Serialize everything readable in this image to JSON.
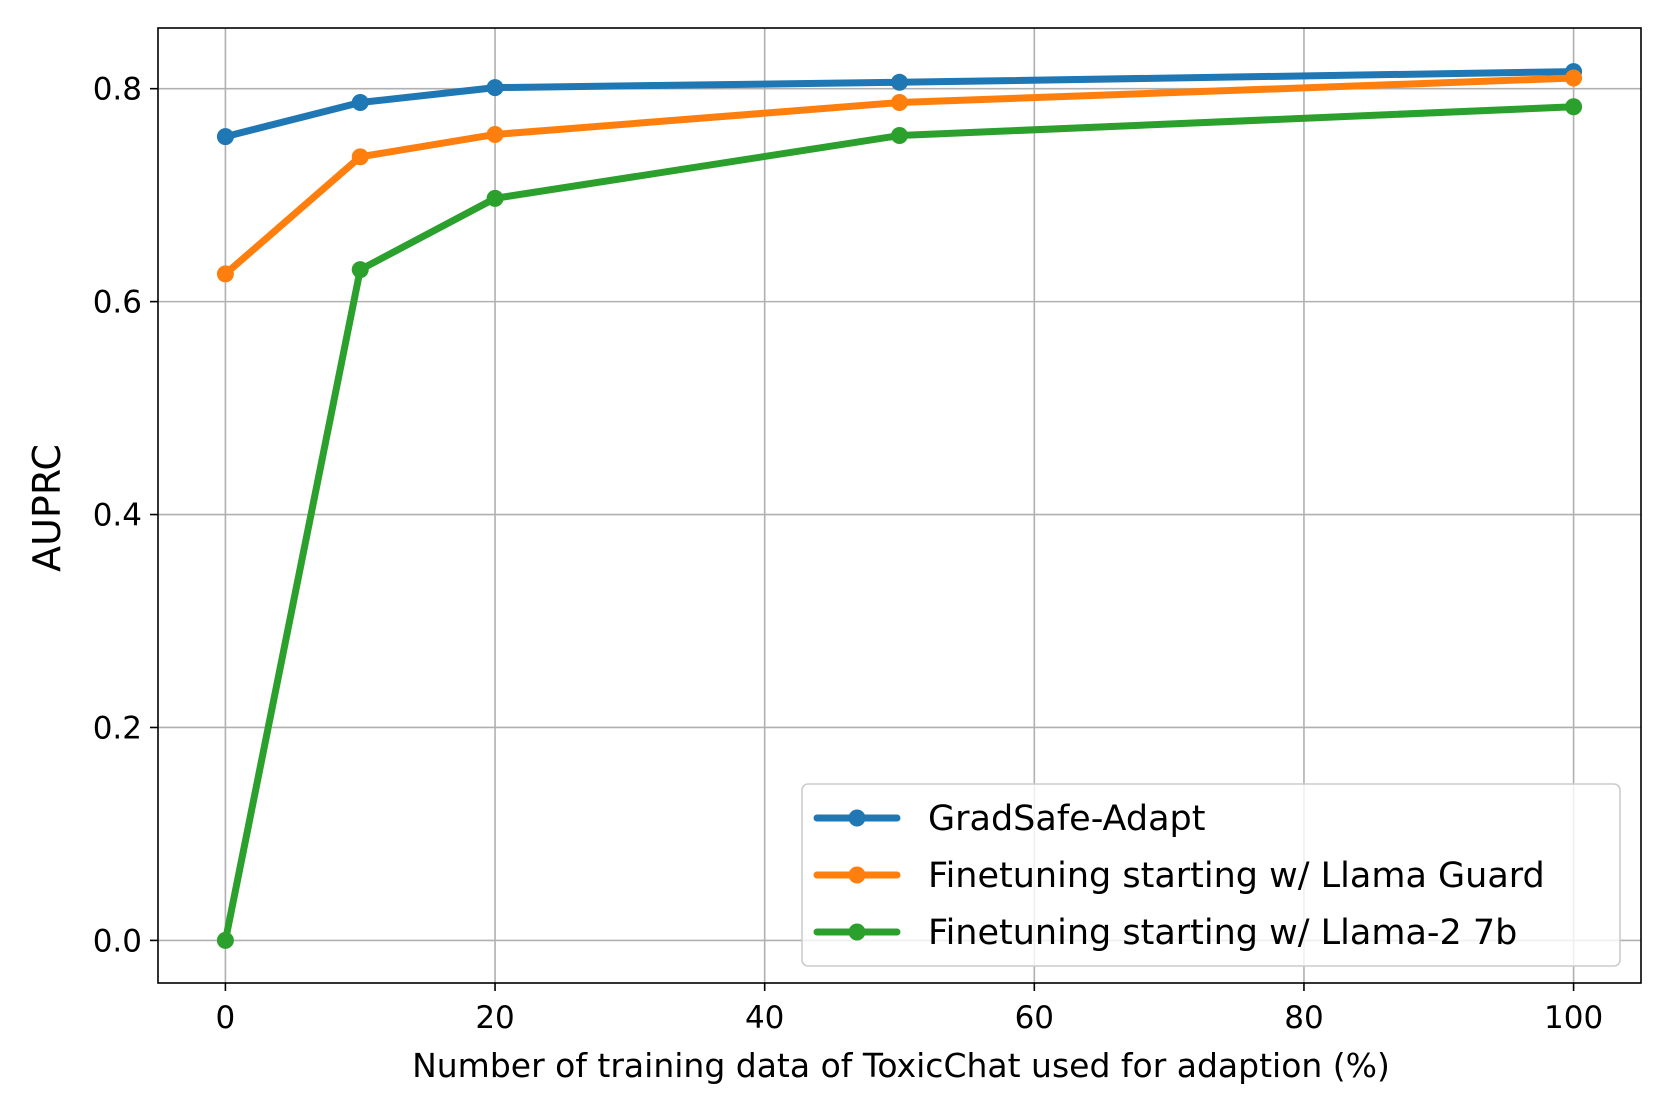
{
  "chart_data": {
    "type": "line",
    "title": "",
    "xlabel": "Number of training data of ToxicChat used for adaption (%)",
    "ylabel": "AUPRC",
    "x": [
      0,
      10,
      20,
      50,
      100
    ],
    "xlim": [
      -5,
      105
    ],
    "ylim": [
      -0.04,
      0.857
    ],
    "xticks": [
      0,
      20,
      40,
      60,
      80,
      100
    ],
    "xtick_labels": [
      "0",
      "20",
      "40",
      "60",
      "80",
      "100"
    ],
    "yticks": [
      0.0,
      0.2,
      0.4,
      0.6,
      0.8
    ],
    "ytick_labels": [
      "0.0",
      "0.2",
      "0.4",
      "0.6",
      "0.8"
    ],
    "grid": true,
    "legend_position": "bottom-right",
    "series": [
      {
        "name": "GradSafe-Adapt",
        "color": "#1f77b4",
        "values": [
          0.755,
          0.787,
          0.801,
          0.806,
          0.816
        ]
      },
      {
        "name": "Finetuning starting w/ Llama Guard",
        "color": "#ff7f0e",
        "values": [
          0.626,
          0.736,
          0.757,
          0.787,
          0.81
        ]
      },
      {
        "name": "Finetuning starting w/ Llama-2 7b",
        "color": "#2ca02c",
        "values": [
          0.0,
          0.63,
          0.697,
          0.756,
          0.783
        ]
      }
    ]
  }
}
